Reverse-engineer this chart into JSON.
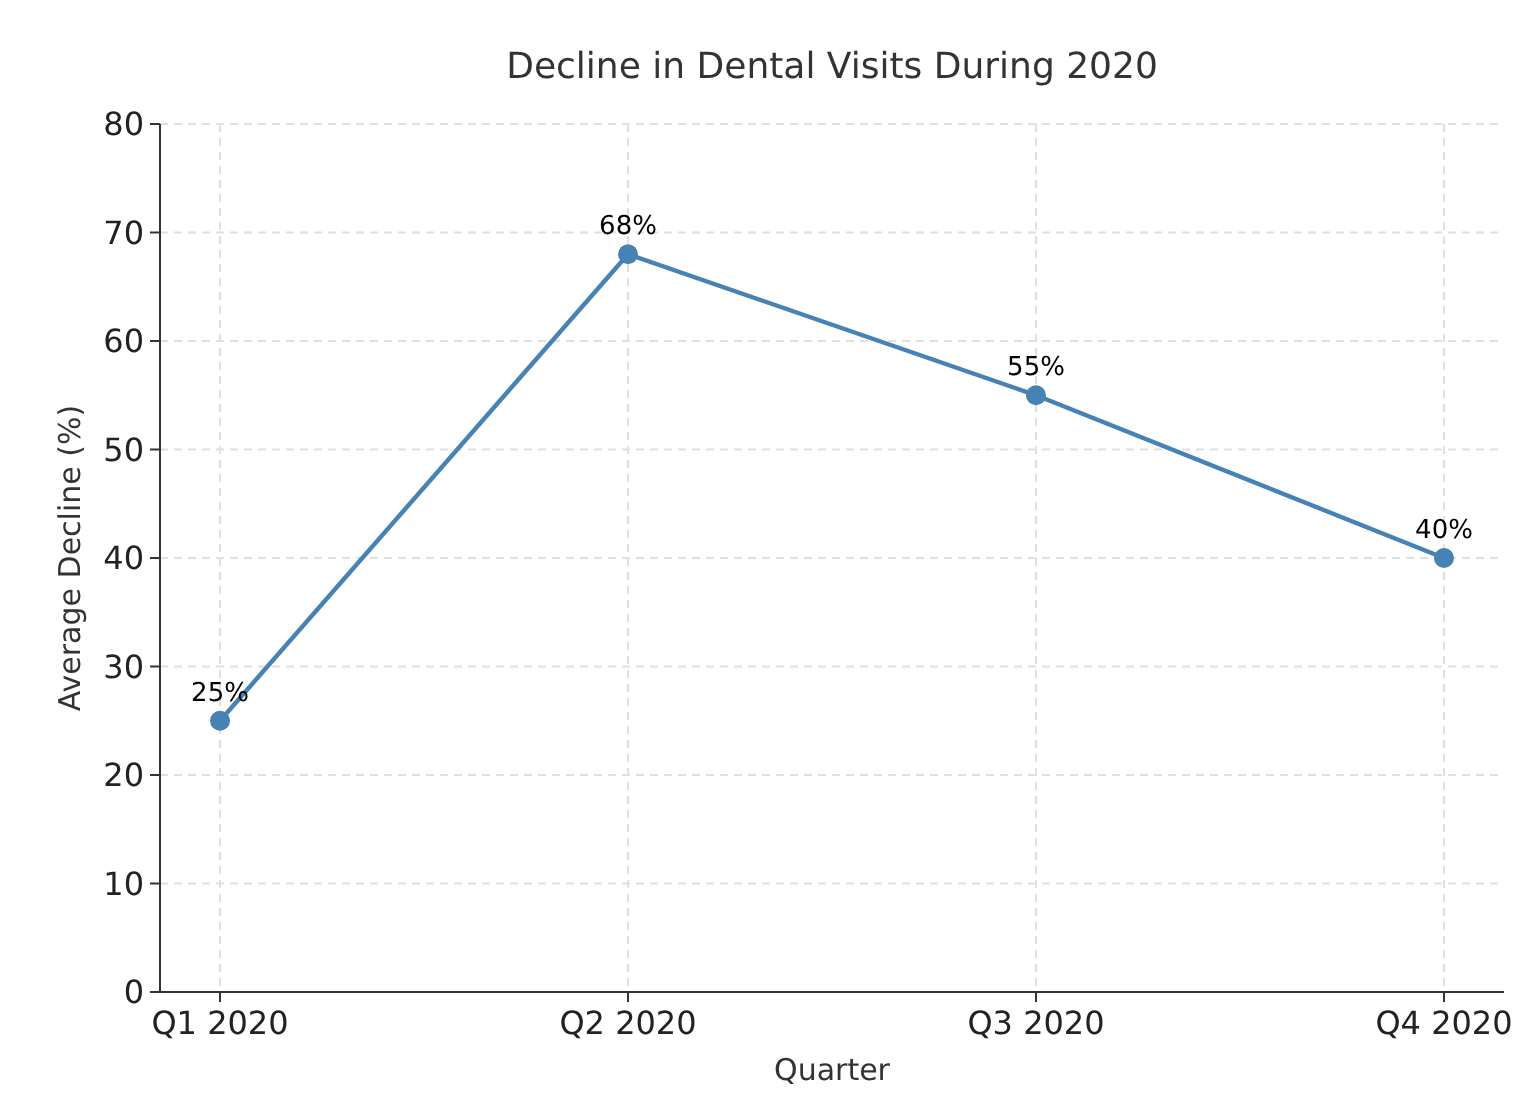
{
  "chart_data": {
    "type": "line",
    "title": "Decline in Dental Visits During 2020",
    "xlabel": "Quarter",
    "ylabel": "Average Decline (%)",
    "categories": [
      "Q1 2020",
      "Q2 2020",
      "Q3 2020",
      "Q4 2020"
    ],
    "series": [
      {
        "color": "#4682b4",
        "values": [
          25,
          68,
          55,
          40
        ],
        "value_labels": [
          "25%",
          "68%",
          "55%",
          "40%"
        ]
      }
    ],
    "ylim": [
      0,
      80
    ],
    "yticks": [
      0,
      10,
      20,
      30,
      40,
      50,
      60,
      70,
      80
    ],
    "grid": true,
    "marker": "circle",
    "line_style": "solid"
  }
}
